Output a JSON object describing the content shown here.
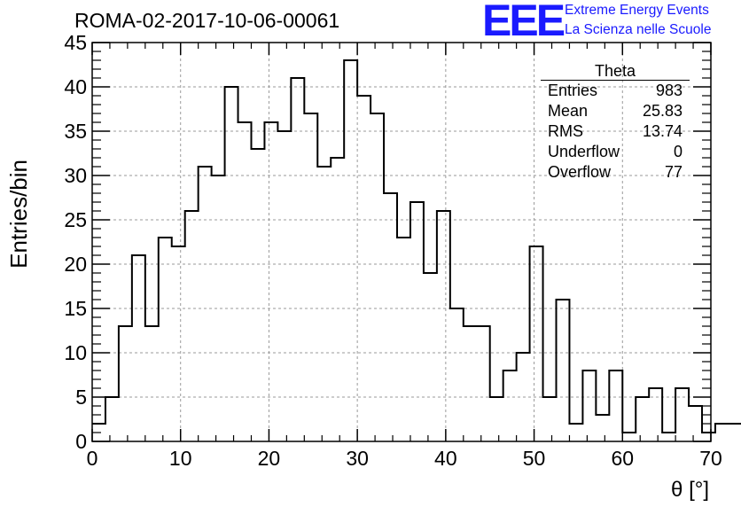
{
  "chart_data": {
    "type": "bar",
    "title": "ROMA-02-2017-10-06-00061",
    "xlabel": "θ [°]",
    "ylabel": "Entries/bin",
    "xlim": [
      0,
      70
    ],
    "ylim": [
      0,
      45
    ],
    "bin_width": 1.5,
    "grid": true,
    "xticks": [
      "0",
      "10",
      "20",
      "30",
      "40",
      "50",
      "60",
      "70"
    ],
    "yticks": [
      "0",
      "5",
      "10",
      "15",
      "20",
      "25",
      "30",
      "35",
      "40",
      "45"
    ],
    "values": [
      2,
      5,
      13,
      21,
      13,
      23,
      22,
      26,
      31,
      30,
      40,
      36,
      33,
      36,
      35,
      41,
      37,
      31,
      32,
      43,
      39,
      37,
      28,
      23,
      27,
      19,
      26,
      15,
      13,
      13,
      5,
      8,
      10,
      22,
      5,
      16,
      2,
      8,
      3,
      8,
      1,
      5,
      6,
      1,
      6,
      4,
      1,
      2,
      2
    ]
  },
  "logo": {
    "mark": "EEE",
    "line1": "Extreme Energy Events",
    "line2": "La Scienza nelle Scuole"
  },
  "stats": {
    "title": "Theta",
    "rows": [
      {
        "label": "Entries",
        "value": "983"
      },
      {
        "label": "Mean",
        "value": "25.83"
      },
      {
        "label": "RMS",
        "value": "13.74"
      },
      {
        "label": "Underflow",
        "value": "0"
      },
      {
        "label": "Overflow",
        "value": "77"
      }
    ]
  }
}
